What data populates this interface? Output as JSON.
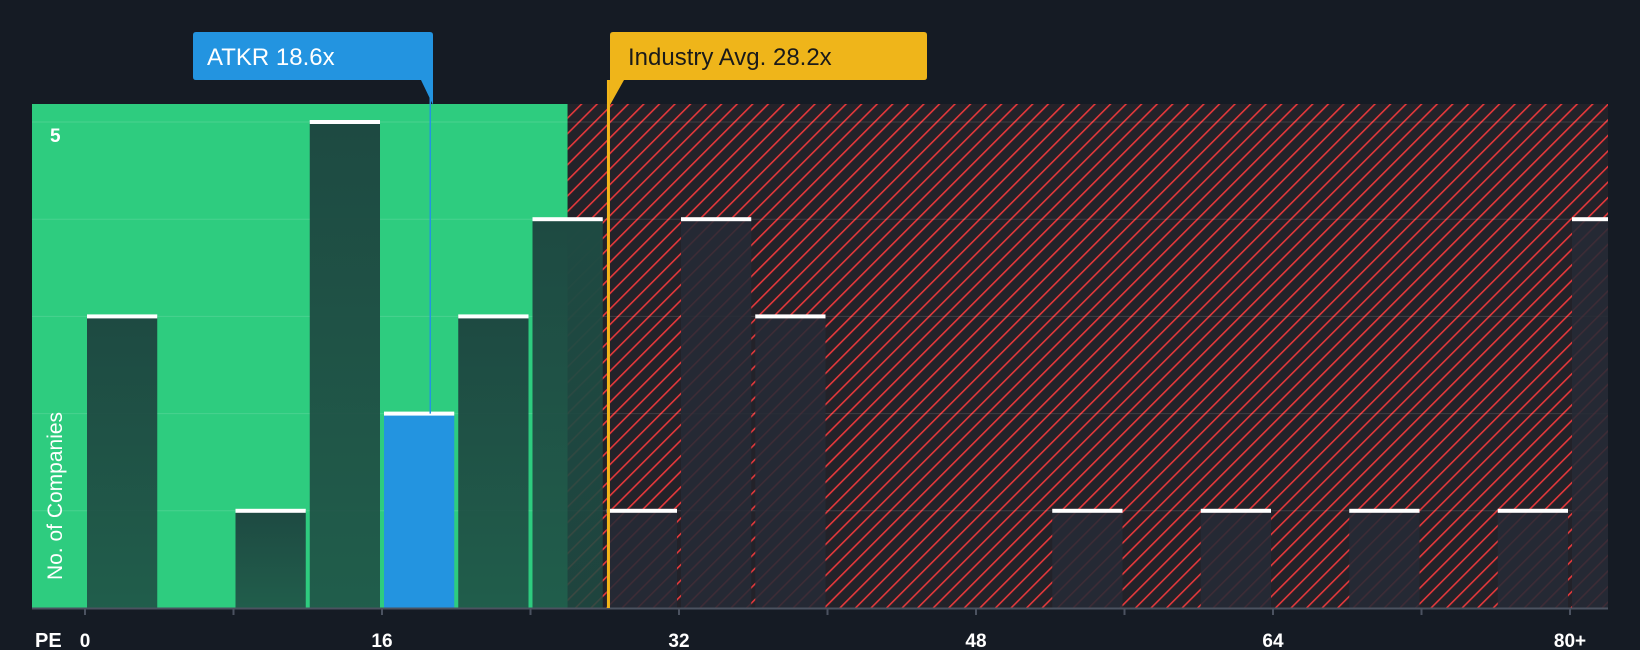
{
  "chart_data": {
    "type": "bar",
    "title": "",
    "xlabel": "PE",
    "ylabel": "No. of Companies",
    "xlim": [
      -4.5,
      82
    ],
    "ylim": [
      0,
      5.15
    ],
    "bin_width": 4,
    "x_ticks": [
      {
        "value": 0,
        "label": "0"
      },
      {
        "value": 16,
        "label": "16"
      },
      {
        "value": 32,
        "label": "32"
      },
      {
        "value": 48,
        "label": "48"
      },
      {
        "value": 64,
        "label": "64"
      },
      {
        "value": 80,
        "label": "80+"
      }
    ],
    "y_ticks": [
      {
        "value": 5,
        "label": "5"
      }
    ],
    "bins": [
      {
        "start": 0,
        "count": 3
      },
      {
        "start": 8,
        "count": 1
      },
      {
        "start": 12,
        "count": 5
      },
      {
        "start": 16,
        "count": 2,
        "highlight": true
      },
      {
        "start": 20,
        "count": 3
      },
      {
        "start": 24,
        "count": 4
      },
      {
        "start": 28,
        "count": 1
      },
      {
        "start": 32,
        "count": 4
      },
      {
        "start": 36,
        "count": 3
      },
      {
        "start": 52,
        "count": 1
      },
      {
        "start": 60,
        "count": 1
      },
      {
        "start": 68,
        "count": 1
      },
      {
        "start": 76,
        "count": 1
      },
      {
        "start": 80,
        "count": 4
      }
    ],
    "subject": {
      "ticker": "ATKR",
      "value": 18.6,
      "label": "ATKR 18.6x"
    },
    "industry": {
      "value": 28.2,
      "label": "Industry Avg. 28.2x"
    },
    "fair_zone_end": 26,
    "colors": {
      "background": "#151b24",
      "fair_zone": "#2ecc7f",
      "bar_in_zone": "#1e4a42",
      "bar_out_zone": "#262a35",
      "subject_bar": "#2394e0",
      "subject_callout": "#2394e0",
      "industry_line": "#f2b519",
      "industry_callout": "#efb51a",
      "hatch": "#e5383b",
      "overvalued_bg": "#232229",
      "bar_cap": "#ffffff",
      "axis": "#4b5260"
    }
  }
}
